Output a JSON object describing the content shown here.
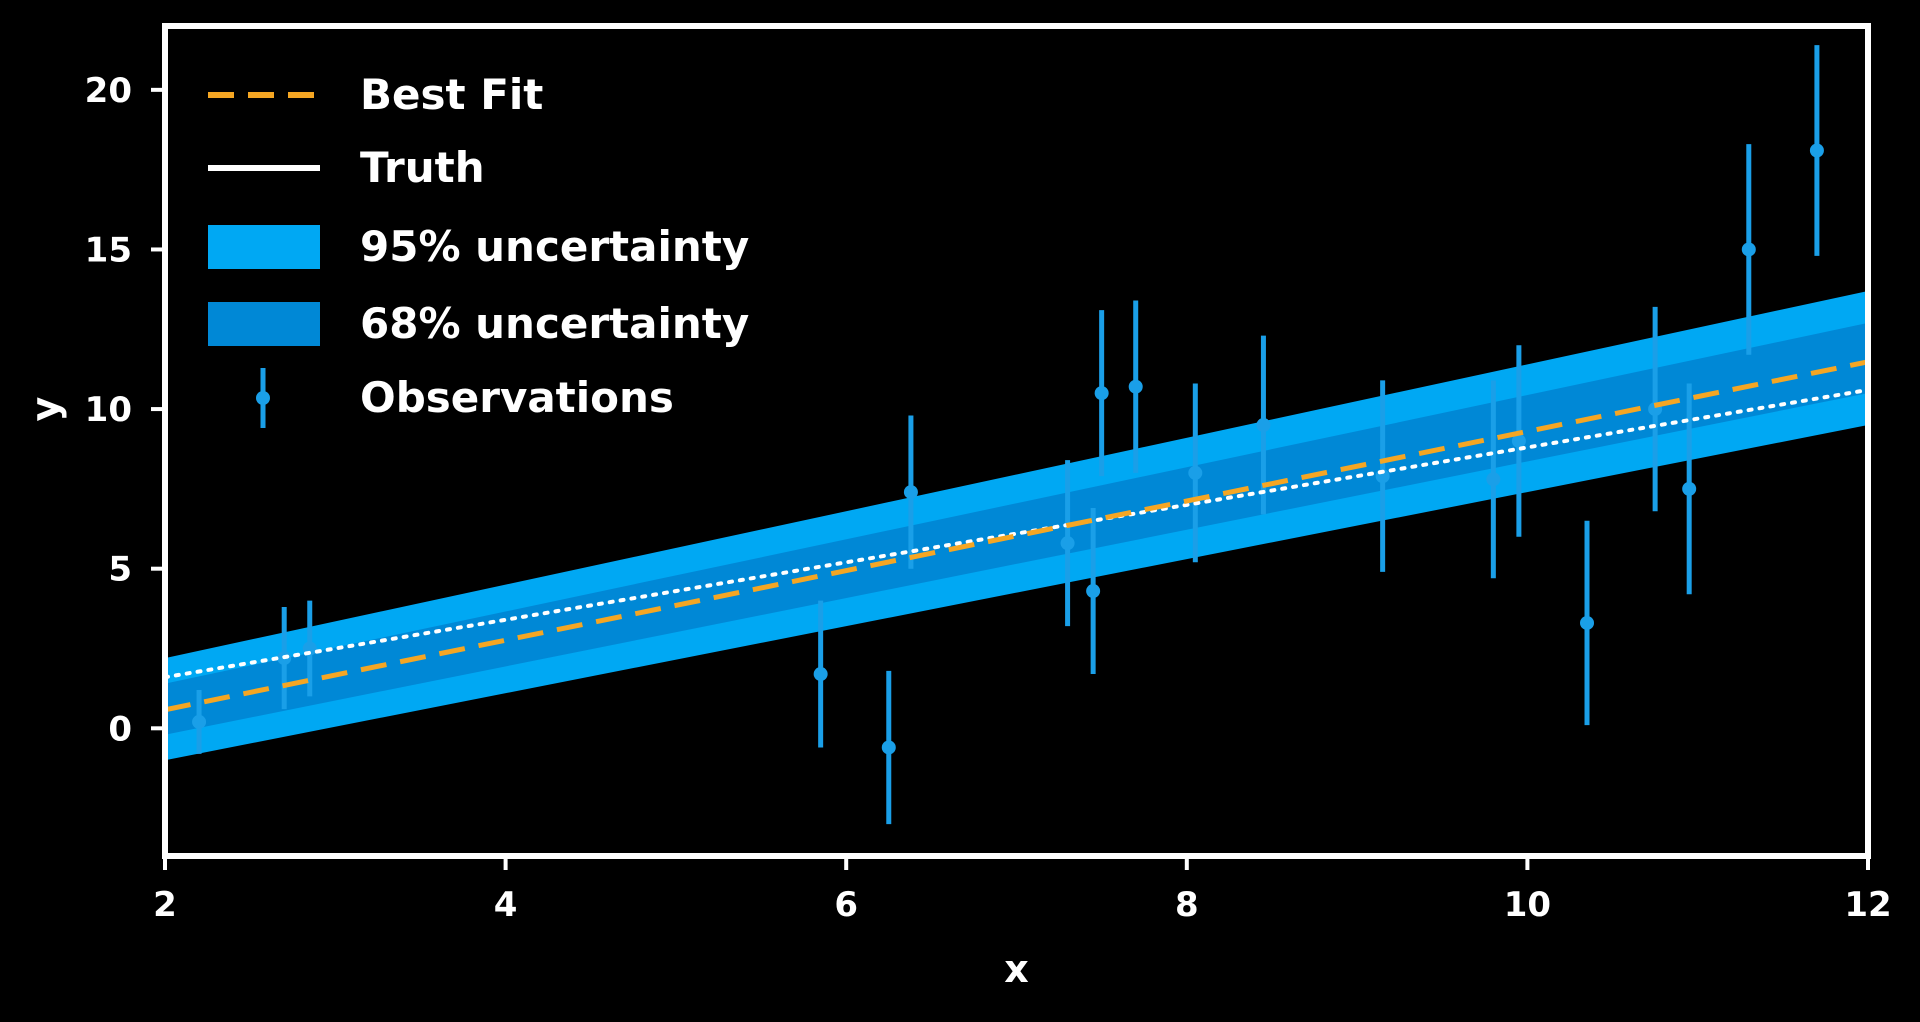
{
  "chart_data": {
    "type": "scatter",
    "xlabel": "x",
    "ylabel": "y",
    "xlim": [
      2,
      12
    ],
    "ylim": [
      -4,
      22
    ],
    "xticks": [
      2,
      4,
      6,
      8,
      10,
      12
    ],
    "yticks": [
      0,
      5,
      10,
      15,
      20
    ],
    "grid": false,
    "legend_position": "top-left",
    "colors": {
      "background": "#000000",
      "axes": "#ffffff",
      "best_fit": "#f5a623",
      "truth": "#ffffff",
      "band_95": "#00a8f3",
      "band_68": "#0088d6",
      "observations": "#1a9fe8"
    },
    "best_fit": {
      "slope": 1.09,
      "intercept": -1.6
    },
    "truth": {
      "slope": 0.9,
      "intercept": -0.2
    },
    "uncertainty_95": {
      "lower": [
        [
          2,
          -1.0
        ],
        [
          12,
          9.5
        ]
      ],
      "upper": [
        [
          2,
          2.2
        ],
        [
          12,
          13.7
        ]
      ]
    },
    "uncertainty_68": {
      "lower": [
        [
          2,
          -0.2
        ],
        [
          12,
          10.5
        ]
      ],
      "upper": [
        [
          2,
          1.4
        ],
        [
          12,
          12.7
        ]
      ]
    },
    "observations": [
      {
        "x": 2.2,
        "y": 0.2,
        "err": 1.0
      },
      {
        "x": 2.7,
        "y": 2.2,
        "err": 1.6
      },
      {
        "x": 2.85,
        "y": 2.5,
        "err": 1.5
      },
      {
        "x": 5.85,
        "y": 1.7,
        "err": 2.3
      },
      {
        "x": 6.25,
        "y": -0.6,
        "err": 2.4
      },
      {
        "x": 6.38,
        "y": 7.4,
        "err": 2.4
      },
      {
        "x": 7.3,
        "y": 5.8,
        "err": 2.6
      },
      {
        "x": 7.45,
        "y": 4.3,
        "err": 2.6
      },
      {
        "x": 7.5,
        "y": 10.5,
        "err": 2.6
      },
      {
        "x": 7.7,
        "y": 10.7,
        "err": 2.7
      },
      {
        "x": 8.05,
        "y": 8.0,
        "err": 2.8
      },
      {
        "x": 8.45,
        "y": 9.5,
        "err": 2.8
      },
      {
        "x": 9.15,
        "y": 7.9,
        "err": 3.0
      },
      {
        "x": 9.8,
        "y": 7.8,
        "err": 3.1
      },
      {
        "x": 9.95,
        "y": 9.0,
        "err": 3.0
      },
      {
        "x": 10.35,
        "y": 3.3,
        "err": 3.2
      },
      {
        "x": 10.75,
        "y": 10.0,
        "err": 3.2
      },
      {
        "x": 10.95,
        "y": 7.5,
        "err": 3.3
      },
      {
        "x": 11.3,
        "y": 15.0,
        "err": 3.3
      },
      {
        "x": 11.7,
        "y": 18.1,
        "err": 3.3
      }
    ],
    "legend": [
      {
        "key": "best_fit",
        "label": "Best Fit"
      },
      {
        "key": "truth",
        "label": "Truth"
      },
      {
        "key": "band_95",
        "label": "95% uncertainty"
      },
      {
        "key": "band_68",
        "label": "68% uncertainty"
      },
      {
        "key": "observations",
        "label": "Observations"
      }
    ]
  }
}
